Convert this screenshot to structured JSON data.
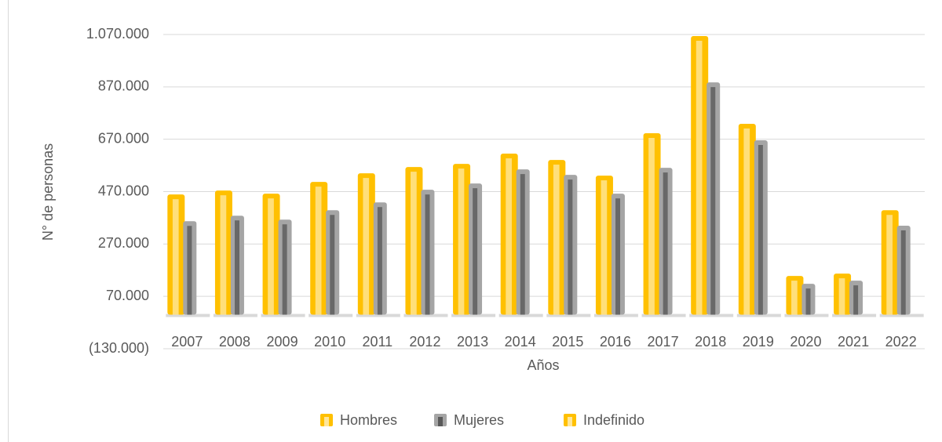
{
  "chart_data": {
    "type": "bar",
    "y_label": "N° de personas",
    "x_label": "Años",
    "categories": [
      "2007",
      "2008",
      "2009",
      "2010",
      "2011",
      "2012",
      "2013",
      "2014",
      "2015",
      "2016",
      "2017",
      "2018",
      "2019",
      "2020",
      "2021",
      "2022"
    ],
    "series": [
      {
        "name": "Hombres",
        "color": "#ffc000",
        "values": [
          459000,
          474000,
          462000,
          507000,
          540000,
          564000,
          576000,
          615000,
          591000,
          531000,
          693000,
          1064000,
          729000,
          148000,
          157000,
          399000
        ]
      },
      {
        "name": "Mujeres",
        "color": "#a5a5a5",
        "values": [
          357000,
          378000,
          363000,
          399000,
          429000,
          477000,
          501000,
          555000,
          534000,
          462000,
          561000,
          887000,
          666000,
          118000,
          130000,
          340000
        ]
      },
      {
        "name": "Indefinido",
        "color": "#ffc000",
        "values": [
          0,
          0,
          0,
          0,
          0,
          0,
          0,
          0,
          0,
          0,
          0,
          0,
          0,
          0,
          0,
          0
        ]
      }
    ],
    "ylim": [
      -130000,
      1070000
    ],
    "yticks": [
      {
        "value": -130000,
        "label": "(130.000)"
      },
      {
        "value": 70000,
        "label": "70.000"
      },
      {
        "value": 270000,
        "label": "270.000"
      },
      {
        "value": 470000,
        "label": "470.000"
      },
      {
        "value": 670000,
        "label": "670.000"
      },
      {
        "value": 870000,
        "label": "870.000"
      },
      {
        "value": 1070000,
        "label": "1.070.000"
      }
    ],
    "grid": true,
    "legend": "bottom"
  }
}
